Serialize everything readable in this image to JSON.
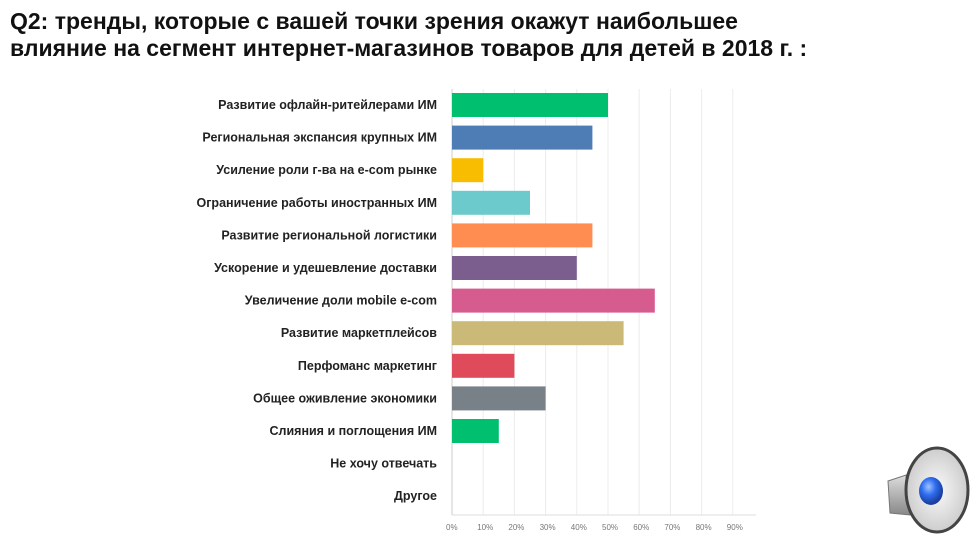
{
  "title_line1": "Q2: тренды, которые с вашей точки зрения окажут наибольшее",
  "title_line2": "влияние на сегмент интернет-магазинов товаров для детей в 2018 г. :",
  "chart_data": {
    "type": "bar",
    "orientation": "horizontal",
    "categories": [
      "Развитие офлайн-ритейлерами ИМ",
      "Региональная экспансия крупных ИМ",
      "Усиление роли г-ва на e-com рынке",
      "Ограничение работы иностранных ИМ",
      "Развитие региональной логистики",
      "Ускорение и удешевление доставки",
      "Увеличение доли mobile e-com",
      "Развитие маркетплейсов",
      "Перфоманс маркетинг",
      "Общее оживление экономики",
      "Слияния и поглощения ИМ",
      "Не хочу отвечать",
      "Другое"
    ],
    "values": [
      50,
      45,
      10,
      25,
      45,
      40,
      65,
      55,
      20,
      30,
      15,
      0,
      0
    ],
    "colors": [
      "#00c070",
      "#4e7db6",
      "#f8bd00",
      "#6ccacd",
      "#ff8c50",
      "#7c5e8e",
      "#d65c8f",
      "#cbb977",
      "#df4b5b",
      "#788187",
      "#00c070",
      "#cccccc",
      "#cccccc"
    ],
    "xlim": [
      0,
      100
    ],
    "xticks": [
      "0%",
      "10%",
      "20%",
      "30%",
      "40%",
      "50%",
      "60%",
      "70%",
      "80%",
      "90%",
      "100%"
    ],
    "grid": true,
    "xlabel": "",
    "ylabel": ""
  },
  "icons": {
    "speaker": "speaker-icon"
  }
}
